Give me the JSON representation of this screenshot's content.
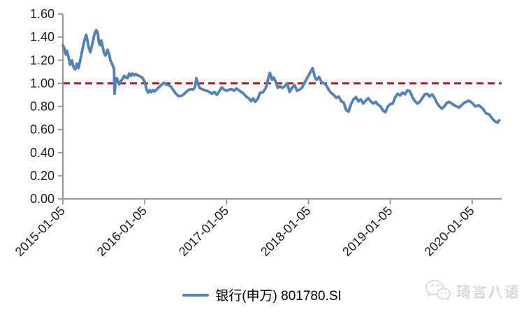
{
  "chart_data": {
    "type": "line",
    "title": "",
    "xlabel": "",
    "ylabel": "",
    "grid": false,
    "legend_position": "bottom-center",
    "x_range": [
      0,
      5.36
    ],
    "y_range": [
      0,
      1.6
    ],
    "axis_color": "#969696",
    "tick_label_color": "#1a1a1a",
    "y_ticks": [
      {
        "v": 0.0,
        "label": "0.00"
      },
      {
        "v": 0.2,
        "label": "0.20"
      },
      {
        "v": 0.4,
        "label": "0.40"
      },
      {
        "v": 0.6,
        "label": "0.60"
      },
      {
        "v": 0.8,
        "label": "0.80"
      },
      {
        "v": 1.0,
        "label": "1.00"
      },
      {
        "v": 1.2,
        "label": "1.20"
      },
      {
        "v": 1.4,
        "label": "1.40"
      },
      {
        "v": 1.6,
        "label": "1.60"
      }
    ],
    "x_ticks": [
      {
        "t": 0,
        "label": "2015-01-05"
      },
      {
        "t": 1,
        "label": "2016-01-05"
      },
      {
        "t": 2,
        "label": "2017-01-05"
      },
      {
        "t": 3,
        "label": "2018-01-05"
      },
      {
        "t": 4,
        "label": "2019-01-05"
      },
      {
        "t": 5,
        "label": "2020-01-05"
      }
    ],
    "reference_line": {
      "value": 1.0,
      "color": "#C00000",
      "style": "dashed"
    },
    "series": [
      {
        "name": "银行(申万) 801780.SI",
        "color": "#4F81BD",
        "x_unit": "years since 2015-01-05",
        "points": [
          [
            0,
            1.33
          ],
          [
            0.02,
            1.3
          ],
          [
            0.035,
            1.25
          ],
          [
            0.05,
            1.28
          ],
          [
            0.07,
            1.22
          ],
          [
            0.09,
            1.16
          ],
          [
            0.11,
            1.2
          ],
          [
            0.13,
            1.14
          ],
          [
            0.15,
            1.12
          ],
          [
            0.17,
            1.17
          ],
          [
            0.19,
            1.13
          ],
          [
            0.21,
            1.19
          ],
          [
            0.23,
            1.26
          ],
          [
            0.25,
            1.33
          ],
          [
            0.27,
            1.39
          ],
          [
            0.285,
            1.42
          ],
          [
            0.3,
            1.37
          ],
          [
            0.32,
            1.3
          ],
          [
            0.335,
            1.27
          ],
          [
            0.36,
            1.34
          ],
          [
            0.38,
            1.41
          ],
          [
            0.405,
            1.46
          ],
          [
            0.425,
            1.44
          ],
          [
            0.44,
            1.35
          ],
          [
            0.455,
            1.33
          ],
          [
            0.47,
            1.37
          ],
          [
            0.5,
            1.27
          ],
          [
            0.52,
            1.24
          ],
          [
            0.545,
            1.29
          ],
          [
            0.565,
            1.25
          ],
          [
            0.58,
            1.2
          ],
          [
            0.6,
            1.17
          ],
          [
            0.615,
            1.14
          ],
          [
            0.625,
            1.13
          ],
          [
            0.632,
            0.91
          ],
          [
            0.645,
            1.03
          ],
          [
            0.66,
            1.045
          ],
          [
            0.675,
            1.015
          ],
          [
            0.69,
            0.99
          ],
          [
            0.71,
            1.02
          ],
          [
            0.73,
            1.04
          ],
          [
            0.75,
            1.065
          ],
          [
            0.77,
            1.05
          ],
          [
            0.79,
            1.045
          ],
          [
            0.81,
            1.085
          ],
          [
            0.83,
            1.065
          ],
          [
            0.85,
            1.085
          ],
          [
            0.87,
            1.07
          ],
          [
            0.89,
            1.08
          ],
          [
            0.91,
            1.07
          ],
          [
            0.93,
            1.065
          ],
          [
            0.95,
            1.055
          ],
          [
            0.97,
            1.05
          ],
          [
            0.985,
            1.03
          ],
          [
            1,
            1.015
          ],
          [
            1.02,
            0.95
          ],
          [
            1.04,
            0.92
          ],
          [
            1.06,
            0.94
          ],
          [
            1.08,
            0.925
          ],
          [
            1.1,
            0.94
          ],
          [
            1.12,
            0.93
          ],
          [
            1.15,
            0.95
          ],
          [
            1.18,
            0.97
          ],
          [
            1.21,
            0.99
          ],
          [
            1.235,
            1.005
          ],
          [
            1.26,
            0.99
          ],
          [
            1.29,
            0.985
          ],
          [
            1.32,
            0.97
          ],
          [
            1.35,
            0.94
          ],
          [
            1.38,
            0.91
          ],
          [
            1.41,
            0.89
          ],
          [
            1.44,
            0.89
          ],
          [
            1.47,
            0.9
          ],
          [
            1.5,
            0.92
          ],
          [
            1.53,
            0.94
          ],
          [
            1.56,
            0.95
          ],
          [
            1.59,
            0.945
          ],
          [
            1.615,
            0.97
          ],
          [
            1.63,
            1.045
          ],
          [
            1.65,
            1
          ],
          [
            1.67,
            0.96
          ],
          [
            1.7,
            0.95
          ],
          [
            1.73,
            0.94
          ],
          [
            1.76,
            0.935
          ],
          [
            1.79,
            0.925
          ],
          [
            1.82,
            0.91
          ],
          [
            1.85,
            0.925
          ],
          [
            1.88,
            0.9
          ],
          [
            1.91,
            0.93
          ],
          [
            1.94,
            0.965
          ],
          [
            1.97,
            0.945
          ],
          [
            2,
            0.935
          ],
          [
            2.03,
            0.945
          ],
          [
            2.06,
            0.95
          ],
          [
            2.09,
            0.935
          ],
          [
            2.12,
            0.955
          ],
          [
            2.15,
            0.94
          ],
          [
            2.18,
            0.925
          ],
          [
            2.21,
            0.91
          ],
          [
            2.24,
            0.885
          ],
          [
            2.27,
            0.87
          ],
          [
            2.3,
            0.845
          ],
          [
            2.325,
            0.87
          ],
          [
            2.35,
            0.84
          ],
          [
            2.38,
            0.865
          ],
          [
            2.41,
            0.92
          ],
          [
            2.44,
            0.92
          ],
          [
            2.47,
            0.95
          ],
          [
            2.49,
            0.98
          ],
          [
            2.51,
            1.05
          ],
          [
            2.53,
            1.09
          ],
          [
            2.555,
            1.03
          ],
          [
            2.575,
            1.05
          ],
          [
            2.6,
            1.015
          ],
          [
            2.625,
            0.96
          ],
          [
            2.65,
            0.975
          ],
          [
            2.68,
            0.96
          ],
          [
            2.71,
            0.975
          ],
          [
            2.74,
            1
          ],
          [
            2.77,
            0.925
          ],
          [
            2.8,
            0.96
          ],
          [
            2.83,
            0.985
          ],
          [
            2.86,
            0.935
          ],
          [
            2.89,
            0.945
          ],
          [
            2.92,
            0.96
          ],
          [
            2.95,
            1
          ],
          [
            2.98,
            1.04
          ],
          [
            3.01,
            1.08
          ],
          [
            3.05,
            1.13
          ],
          [
            3.08,
            1.05
          ],
          [
            3.1,
            1.03
          ],
          [
            3.13,
            1.055
          ],
          [
            3.16,
            1.01
          ],
          [
            3.19,
            1
          ],
          [
            3.22,
            0.98
          ],
          [
            3.25,
            0.94
          ],
          [
            3.28,
            0.915
          ],
          [
            3.31,
            0.9
          ],
          [
            3.34,
            0.875
          ],
          [
            3.37,
            0.885
          ],
          [
            3.4,
            0.845
          ],
          [
            3.43,
            0.835
          ],
          [
            3.46,
            0.77
          ],
          [
            3.49,
            0.755
          ],
          [
            3.52,
            0.82
          ],
          [
            3.55,
            0.86
          ],
          [
            3.58,
            0.88
          ],
          [
            3.61,
            0.845
          ],
          [
            3.64,
            0.86
          ],
          [
            3.67,
            0.825
          ],
          [
            3.7,
            0.85
          ],
          [
            3.73,
            0.87
          ],
          [
            3.76,
            0.845
          ],
          [
            3.79,
            0.825
          ],
          [
            3.82,
            0.84
          ],
          [
            3.85,
            0.815
          ],
          [
            3.88,
            0.8
          ],
          [
            3.91,
            0.765
          ],
          [
            3.94,
            0.75
          ],
          [
            3.97,
            0.8
          ],
          [
            4,
            0.82
          ],
          [
            4.03,
            0.825
          ],
          [
            4.06,
            0.88
          ],
          [
            4.09,
            0.91
          ],
          [
            4.12,
            0.895
          ],
          [
            4.15,
            0.92
          ],
          [
            4.18,
            0.905
          ],
          [
            4.21,
            0.94
          ],
          [
            4.24,
            0.93
          ],
          [
            4.27,
            0.88
          ],
          [
            4.3,
            0.845
          ],
          [
            4.33,
            0.825
          ],
          [
            4.36,
            0.84
          ],
          [
            4.39,
            0.87
          ],
          [
            4.42,
            0.905
          ],
          [
            4.45,
            0.91
          ],
          [
            4.48,
            0.885
          ],
          [
            4.51,
            0.905
          ],
          [
            4.54,
            0.875
          ],
          [
            4.57,
            0.83
          ],
          [
            4.6,
            0.8
          ],
          [
            4.63,
            0.78
          ],
          [
            4.66,
            0.8
          ],
          [
            4.69,
            0.83
          ],
          [
            4.72,
            0.84
          ],
          [
            4.75,
            0.825
          ],
          [
            4.78,
            0.81
          ],
          [
            4.81,
            0.8
          ],
          [
            4.84,
            0.79
          ],
          [
            4.87,
            0.81
          ],
          [
            4.9,
            0.83
          ],
          [
            4.93,
            0.84
          ],
          [
            4.96,
            0.85
          ],
          [
            5,
            0.83
          ],
          [
            5.04,
            0.8
          ],
          [
            5.08,
            0.81
          ],
          [
            5.13,
            0.78
          ],
          [
            5.17,
            0.74
          ],
          [
            5.21,
            0.73
          ],
          [
            5.25,
            0.69
          ],
          [
            5.28,
            0.67
          ],
          [
            5.31,
            0.66
          ],
          [
            5.33,
            0.68
          ]
        ]
      }
    ]
  },
  "legend": {
    "label": "银行(申万) 801780.SI",
    "marker_color": "#4F81BD"
  },
  "watermark": {
    "icon": "wechat-icon",
    "text": "琦言八语"
  }
}
